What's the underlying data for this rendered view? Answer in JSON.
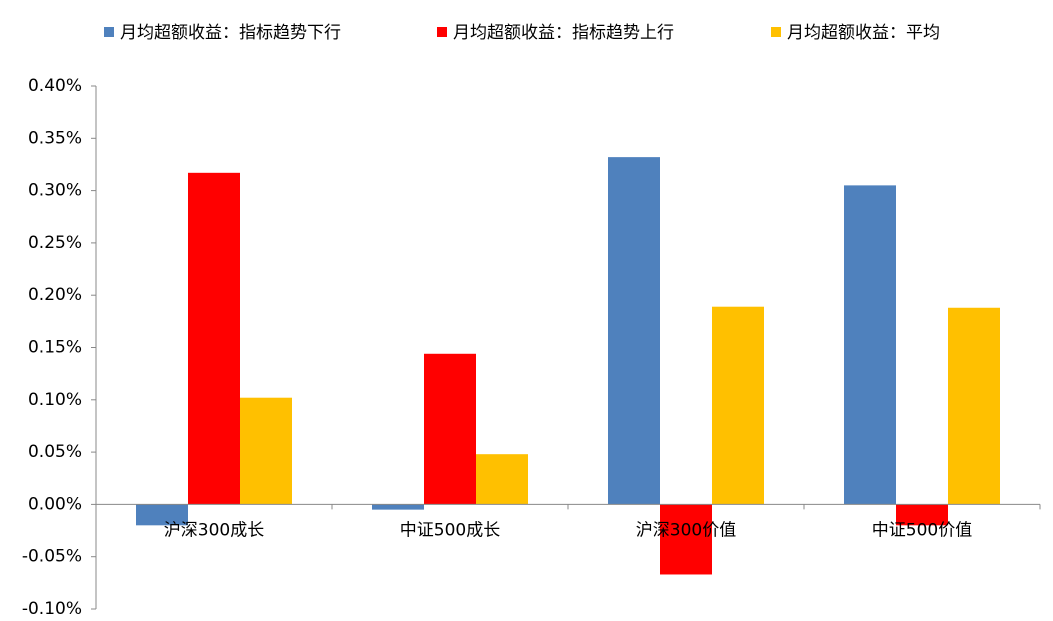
{
  "chart_data": {
    "type": "bar",
    "categories": [
      "沪深300成长",
      "中证500成长",
      "沪深300价值",
      "中证500价值"
    ],
    "series": [
      {
        "name": "月均超额收益：指标趋势下行",
        "color": "#4f81bd",
        "values": [
          -0.02,
          -0.005,
          0.332,
          0.305
        ]
      },
      {
        "name": "月均超额收益：指标趋势上行",
        "color": "#ff0000",
        "values": [
          0.317,
          0.144,
          -0.067,
          -0.02
        ]
      },
      {
        "name": "月均超额收益：平均",
        "color": "#ffc000",
        "values": [
          0.102,
          0.048,
          0.189,
          0.188
        ]
      }
    ],
    "ylim": [
      -0.1,
      0.4
    ],
    "yticks": [
      {
        "value": -0.1,
        "label": "-0.10%"
      },
      {
        "value": -0.05,
        "label": "-0.05%"
      },
      {
        "value": 0,
        "label": "0.00%"
      },
      {
        "value": 0.05,
        "label": "0.05%"
      },
      {
        "value": 0.1,
        "label": "0.10%"
      },
      {
        "value": 0.15,
        "label": "0.15%"
      },
      {
        "value": 0.2,
        "label": "0.20%"
      },
      {
        "value": 0.25,
        "label": "0.25%"
      },
      {
        "value": 0.3,
        "label": "0.30%"
      },
      {
        "value": 0.35,
        "label": "0.35%"
      },
      {
        "value": 0.4,
        "label": "0.40%"
      }
    ],
    "legend": "top"
  }
}
